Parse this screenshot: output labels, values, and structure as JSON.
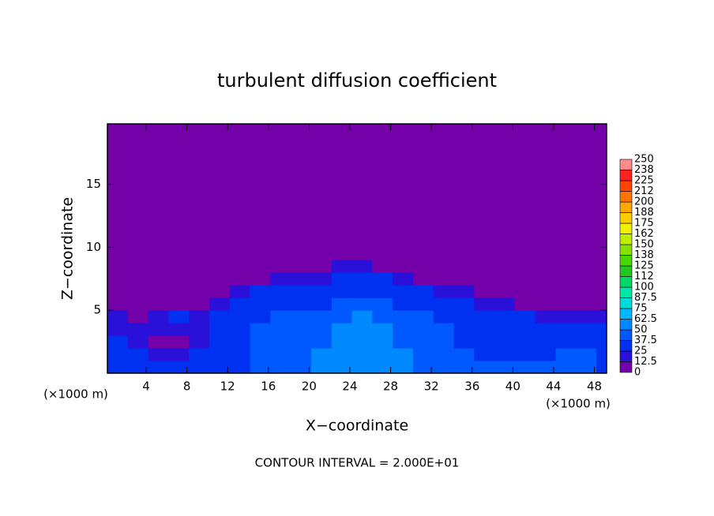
{
  "chart_data": {
    "type": "heatmap",
    "title": "turbulent diffusion coefficient",
    "x_label": "X−coordinate",
    "y_label": "Z−coordinate",
    "x_unit": "(×1000 m)",
    "footnote": "CONTOUR INTERVAL = 2.000E+01",
    "xlim": [
      0.2,
      49.2
    ],
    "ylim": [
      0,
      19.8
    ],
    "xticks": [
      4,
      8,
      12,
      16,
      20,
      24,
      28,
      32,
      36,
      40,
      44,
      48
    ],
    "yticks": [
      5,
      10,
      15
    ],
    "x_edges": [
      0.2,
      2.2,
      4.2,
      6.2,
      8.2,
      10.2,
      12.2,
      14.2,
      16.2,
      18.2,
      20.2,
      22.2,
      24.2,
      26.2,
      28.2,
      30.2,
      32.2,
      34.2,
      36.2,
      38.2,
      40.2,
      42.2,
      44.2,
      46.2,
      48.2,
      49.2
    ],
    "y_edges": [
      0,
      1,
      2,
      3,
      4,
      5,
      6,
      7,
      8,
      9,
      19.8
    ],
    "z": [
      [
        35,
        35,
        30,
        30,
        30,
        35,
        35,
        40,
        45,
        45,
        50,
        50,
        55,
        55,
        50,
        45,
        45,
        40,
        40,
        40,
        40,
        40,
        45,
        40,
        35
      ],
      [
        30,
        30,
        20,
        20,
        25,
        30,
        35,
        40,
        40,
        45,
        50,
        55,
        60,
        55,
        50,
        45,
        40,
        40,
        35,
        35,
        35,
        35,
        40,
        40,
        35
      ],
      [
        25,
        20,
        10,
        10,
        20,
        30,
        35,
        40,
        40,
        45,
        45,
        50,
        55,
        50,
        45,
        45,
        40,
        35,
        35,
        30,
        30,
        30,
        35,
        35,
        30
      ],
      [
        20,
        15,
        20,
        20,
        20,
        30,
        35,
        40,
        40,
        45,
        45,
        50,
        55,
        50,
        45,
        40,
        40,
        35,
        30,
        30,
        30,
        25,
        25,
        30,
        25
      ],
      [
        15,
        10,
        20,
        25,
        15,
        25,
        35,
        35,
        40,
        40,
        40,
        45,
        50,
        45,
        40,
        40,
        35,
        30,
        30,
        25,
        25,
        20,
        20,
        15,
        15
      ],
      [
        5,
        5,
        5,
        5,
        10,
        20,
        30,
        35,
        35,
        35,
        35,
        40,
        45,
        40,
        35,
        35,
        30,
        25,
        20,
        15,
        10,
        5,
        5,
        5,
        5
      ],
      [
        0,
        0,
        0,
        0,
        5,
        10,
        20,
        25,
        30,
        30,
        30,
        35,
        35,
        35,
        30,
        25,
        20,
        15,
        10,
        5,
        0,
        0,
        0,
        0,
        0
      ],
      [
        0,
        0,
        0,
        0,
        0,
        0,
        5,
        10,
        15,
        20,
        20,
        25,
        25,
        25,
        20,
        10,
        5,
        0,
        0,
        0,
        0,
        0,
        0,
        0,
        0
      ],
      [
        0,
        0,
        0,
        0,
        0,
        0,
        0,
        0,
        0,
        5,
        10,
        15,
        15,
        10,
        5,
        0,
        0,
        0,
        0,
        0,
        0,
        0,
        0,
        0,
        0
      ],
      [
        0,
        0,
        0,
        0,
        0,
        0,
        0,
        0,
        0,
        0,
        0,
        0,
        0,
        0,
        0,
        0,
        0,
        0,
        0,
        0,
        0,
        0,
        0,
        0,
        0
      ]
    ],
    "levels": [
      0,
      12.5,
      25,
      37.5,
      50,
      62.5,
      75,
      87.5,
      100,
      {
        "value": 112.5,
        "label": "112"
      },
      125,
      {
        "value": 137.5,
        "label": "138"
      },
      150,
      {
        "value": 162.5,
        "label": "162"
      },
      175,
      {
        "value": 187.5,
        "label": "188"
      },
      200,
      {
        "value": 212.5,
        "label": "212"
      },
      225,
      {
        "value": 237.5,
        "label": "238"
      },
      250
    ],
    "colors": [
      "#7400aa",
      "#2a10d8",
      "#0030f0",
      "#0058ff",
      "#0088ff",
      "#00b8ff",
      "#00dcdc",
      "#00e8a8",
      "#00d868",
      "#20c820",
      "#48d800",
      "#88e000",
      "#c0ec00",
      "#f0f000",
      "#ffcc00",
      "#ffa800",
      "#ff7400",
      "#ff4400",
      "#ff2020",
      "#ff8a8a"
    ]
  }
}
